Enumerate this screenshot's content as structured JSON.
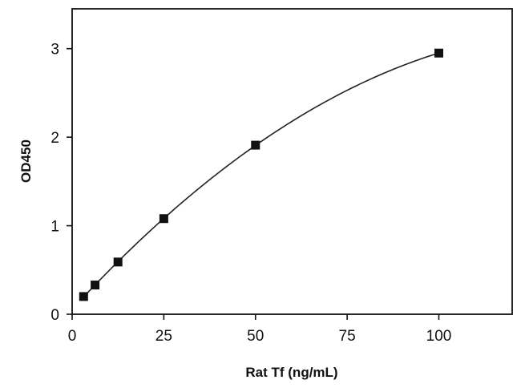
{
  "chart_data": {
    "type": "scatter",
    "title": "",
    "xlabel": "Rat Tf (ng/mL)",
    "ylabel": "OD450",
    "xlim": [
      0,
      120
    ],
    "ylim": [
      0,
      3.45
    ],
    "x_ticks": [
      0,
      25,
      50,
      75,
      100
    ],
    "y_ticks": [
      0,
      1,
      2,
      3
    ],
    "grid": false,
    "legend": "none",
    "series": [
      {
        "x": [
          3.125,
          6.25,
          12.5,
          25,
          50,
          100
        ],
        "y": [
          0.2,
          0.33,
          0.59,
          1.08,
          1.91,
          2.95
        ],
        "marker": "square",
        "fit_curve": true
      }
    ],
    "colors": {
      "marker": "#111111",
      "curve": "#222222",
      "axes": "#111111"
    }
  }
}
